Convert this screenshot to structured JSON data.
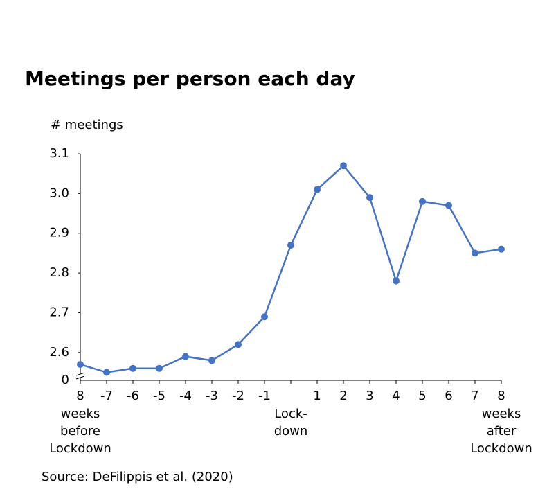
{
  "chart_data": {
    "type": "line",
    "title": "Meetings per person each day",
    "y_axis_label": "# meetings",
    "source": "Source: DeFilippis et al. (2020)",
    "categories": [
      "8",
      "-7",
      "-6",
      "-5",
      "-4",
      "-3",
      "-2",
      "-1",
      null,
      "1",
      "2",
      "3",
      "4",
      "5",
      "6",
      "7",
      "8"
    ],
    "series": [
      {
        "name": "Meetings per person",
        "color": "#4472c4",
        "values": [
          2.57,
          2.55,
          2.56,
          2.56,
          2.59,
          2.58,
          2.62,
          2.69,
          2.87,
          3.01,
          3.07,
          2.99,
          2.78,
          2.98,
          2.97,
          2.85,
          2.86
        ]
      }
    ],
    "ylim": [
      2.53,
      3.1
    ],
    "yticks": [
      2.6,
      2.7,
      2.8,
      2.9,
      {
        "value": 3,
        "label": "3.0"
      },
      3.1
    ],
    "y_break_label": "0",
    "annotations": [
      {
        "index": 0,
        "lines": [
          "weeks",
          "before",
          "Lockdown"
        ]
      },
      {
        "index": 8,
        "lines": [
          "Lock-",
          "down"
        ]
      },
      {
        "index": 16,
        "lines": [
          "weeks",
          "after",
          "Lockdown"
        ]
      }
    ]
  }
}
